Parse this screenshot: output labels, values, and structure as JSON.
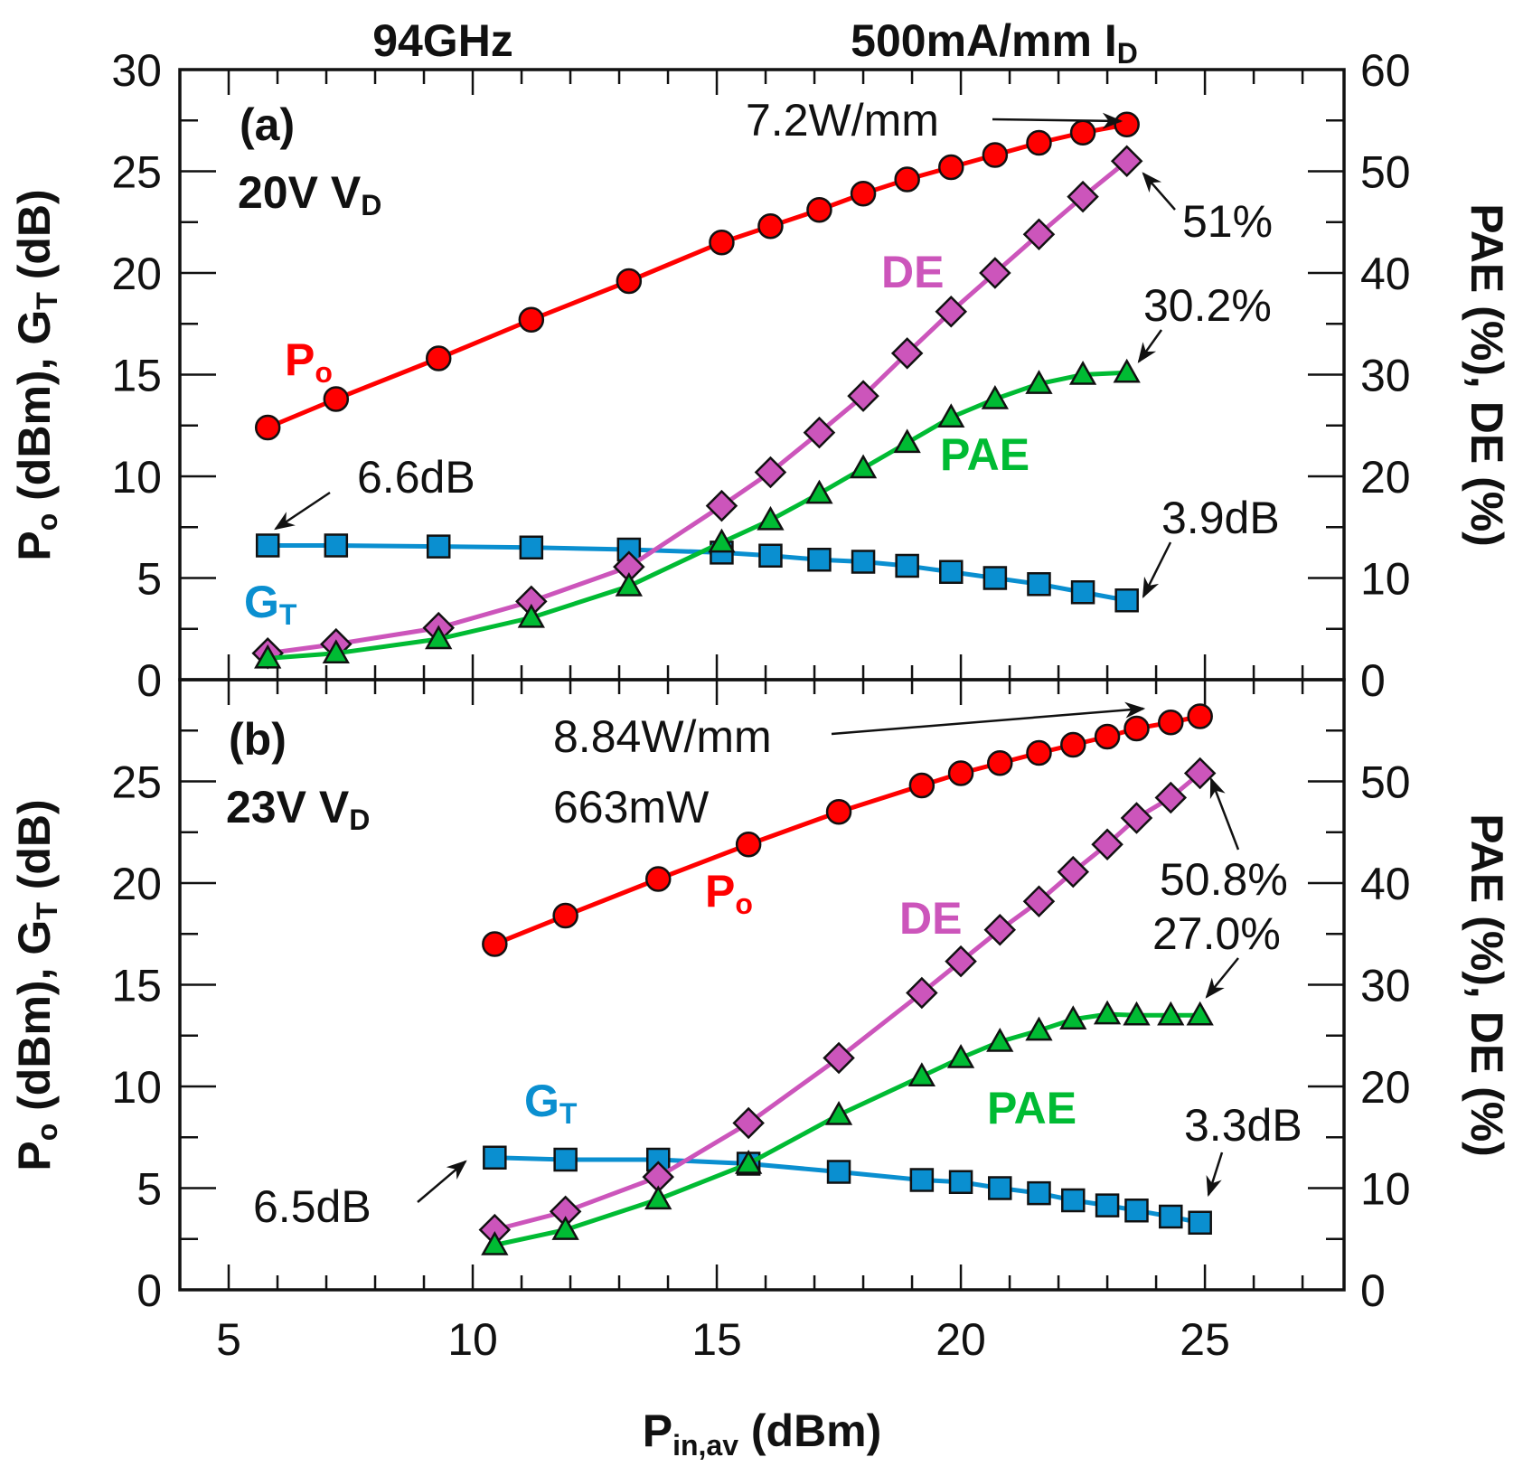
{
  "chart_data": [
    {
      "type": "line",
      "panel": "(a)",
      "condition": "20V V_D",
      "xlabel": "P_in,av (dBm)",
      "ylabel": "P_o (dBm), G_T (dB)",
      "ylabel_right": "PAE (%), DE (%)",
      "xlim": [
        4,
        27.85
      ],
      "ylim": [
        0,
        30
      ],
      "ylim_right": [
        0,
        60
      ],
      "x": [
        5.8,
        7.2,
        9.3,
        11.2,
        13.2,
        15.1,
        16.1,
        17.1,
        18.0,
        18.9,
        19.8,
        20.7,
        21.6,
        22.5,
        23.4
      ],
      "series": [
        {
          "name": "Po",
          "axis": "left",
          "unit": "dBm",
          "color": "#ff0000",
          "marker": "circle",
          "values": [
            12.4,
            13.8,
            15.8,
            17.7,
            19.6,
            21.5,
            22.3,
            23.1,
            23.9,
            24.6,
            25.2,
            25.8,
            26.4,
            26.9,
            27.3
          ]
        },
        {
          "name": "GT",
          "axis": "left",
          "unit": "dB",
          "color": "#0a8fd0",
          "marker": "square",
          "values": [
            6.6,
            6.6,
            6.55,
            6.5,
            6.4,
            6.25,
            6.1,
            5.9,
            5.8,
            5.6,
            5.3,
            5.0,
            4.7,
            4.3,
            3.9
          ]
        },
        {
          "name": "DE",
          "axis": "right",
          "unit": "%",
          "color": "#cc55bb",
          "marker": "diamond",
          "values": [
            2.6,
            3.5,
            5.1,
            7.7,
            11.1,
            17.1,
            20.4,
            24.3,
            27.9,
            32.1,
            36.2,
            40.0,
            43.8,
            47.5,
            51.0
          ]
        },
        {
          "name": "PAE",
          "axis": "right",
          "unit": "%",
          "color": "#00bb33",
          "marker": "triangle",
          "values": [
            2.1,
            2.6,
            4.0,
            6.1,
            9.2,
            13.5,
            15.7,
            18.3,
            20.8,
            23.3,
            25.8,
            27.6,
            29.1,
            30.0,
            30.2
          ]
        }
      ]
    },
    {
      "type": "line",
      "panel": "(b)",
      "condition": "23V V_D",
      "xlabel": "P_in,av (dBm)",
      "ylabel": "P_o (dBm), G_T (dB)",
      "ylabel_right": "PAE (%), DE (%)",
      "xlim": [
        4,
        27.85
      ],
      "ylim": [
        0,
        30
      ],
      "ylim_right": [
        0,
        60
      ],
      "x": [
        10.45,
        11.9,
        13.8,
        15.65,
        17.5,
        19.2,
        20.0,
        20.8,
        21.6,
        22.3,
        23.0,
        23.6,
        24.3,
        24.9
      ],
      "series": [
        {
          "name": "Po",
          "axis": "left",
          "unit": "dBm",
          "color": "#ff0000",
          "marker": "circle",
          "values": [
            17.0,
            18.4,
            20.2,
            21.9,
            23.5,
            24.8,
            25.4,
            25.9,
            26.4,
            26.8,
            27.2,
            27.6,
            27.9,
            28.2
          ]
        },
        {
          "name": "GT",
          "axis": "left",
          "unit": "dB",
          "color": "#0a8fd0",
          "marker": "square",
          "values": [
            6.5,
            6.4,
            6.4,
            6.2,
            5.8,
            5.4,
            5.3,
            5.0,
            4.75,
            4.4,
            4.15,
            3.9,
            3.6,
            3.3
          ]
        },
        {
          "name": "DE",
          "axis": "right",
          "unit": "%",
          "color": "#cc55bb",
          "marker": "diamond",
          "values": [
            5.9,
            7.7,
            11.1,
            16.4,
            22.8,
            29.2,
            32.3,
            35.4,
            38.2,
            41.1,
            43.8,
            46.4,
            48.4,
            50.8
          ]
        },
        {
          "name": "PAE",
          "axis": "right",
          "unit": "%",
          "color": "#00bb33",
          "marker": "triangle",
          "values": [
            4.4,
            5.9,
            8.9,
            12.4,
            17.2,
            21.0,
            22.8,
            24.4,
            25.5,
            26.6,
            27.1,
            27.0,
            27.0,
            27.0
          ]
        }
      ]
    }
  ],
  "header": {
    "freq": "94GHz",
    "bias_main": "500mA/mm I",
    "bias_sub": "D"
  },
  "ticks": {
    "x": [
      "5",
      "10",
      "15",
      "20",
      "25"
    ],
    "a_left": [
      "0",
      "5",
      "10",
      "15",
      "20",
      "25",
      "30"
    ],
    "a_right": [
      "0",
      "10",
      "20",
      "30",
      "40",
      "50",
      "60"
    ],
    "b_left": [
      "0",
      "5",
      "10",
      "15",
      "20",
      "25"
    ],
    "b_right": [
      "0",
      "10",
      "20",
      "30",
      "40",
      "50"
    ]
  },
  "axes": {
    "xlabel_main": "P",
    "xlabel_sub": "in,av",
    "xlabel_rest": " (dBm)",
    "ylabel_p": "P",
    "ylabel_o": "o",
    "ylabel_mid": " (dBm), G",
    "ylabel_t": "T",
    "ylabel_end": " (dB)",
    "ylabel_right": "PAE (%), DE (%)"
  },
  "panel_a": {
    "tag": "(a)",
    "vd_main": "20V V",
    "vd_sub": "D",
    "po_main": "P",
    "po_sub": "o",
    "gt_main": "G",
    "gt_sub": "T",
    "de": "DE",
    "pae": "PAE",
    "ann_power": "7.2W/mm",
    "ann_de": "51%",
    "ann_pae": "30.2%",
    "ann_gt_end": "3.9dB",
    "ann_gt_start": "6.6dB"
  },
  "panel_b": {
    "tag": "(b)",
    "vd_main": "23V V",
    "vd_sub": "D",
    "po_main": "P",
    "po_sub": "o",
    "gt_main": "G",
    "gt_sub": "T",
    "de": "DE",
    "pae": "PAE",
    "ann_power": "8.84W/mm",
    "ann_power2": "663mW",
    "ann_de": "50.8%",
    "ann_pae": "27.0%",
    "ann_gt_end": "3.3dB",
    "ann_gt_start": "6.5dB"
  }
}
